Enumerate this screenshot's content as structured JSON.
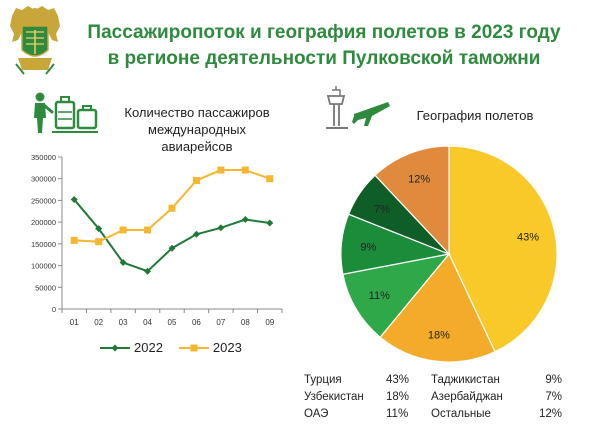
{
  "header": {
    "title_line1": "Пассажиропоток и география полетов в 2023 году",
    "title_line2": "в регионе деятельности Пулковской таможни",
    "emblem_icon": "customs-emblem-icon"
  },
  "passengers_section": {
    "title_line1": "Количество пассажиров",
    "title_line2": "международных авиарейсов",
    "icon": "passenger-luggage-icon"
  },
  "geo_section": {
    "title": "География полетов",
    "icon": "airport-tower-airplane-icon"
  },
  "colors": {
    "title": "#2e8b3e",
    "series_2022": "#1e7a36",
    "series_2023": "#f5b730"
  },
  "chart_data": [
    {
      "type": "line",
      "x": [
        "01",
        "02",
        "03",
        "04",
        "05",
        "06",
        "07",
        "08",
        "09"
      ],
      "ylim": [
        0,
        350000
      ],
      "yticks": [
        0,
        50000,
        100000,
        150000,
        200000,
        250000,
        300000,
        350000
      ],
      "grid": false,
      "legend": "bottom",
      "series": [
        {
          "name": "2022",
          "values": [
            252000,
            185000,
            107000,
            87000,
            140000,
            172000,
            187000,
            206000,
            198000
          ]
        },
        {
          "name": "2023",
          "values": [
            158000,
            155000,
            182000,
            182000,
            232000,
            296000,
            320000,
            320000,
            300000
          ]
        }
      ]
    },
    {
      "type": "pie",
      "slices": [
        {
          "name": "Турция",
          "value": 43,
          "label": "43%",
          "color": "#f8c928"
        },
        {
          "name": "Узбекистан",
          "value": 18,
          "label": "18%",
          "color": "#f5ab2a"
        },
        {
          "name": "ОАЭ",
          "value": 11,
          "label": "11%",
          "color": "#2fa84a"
        },
        {
          "name": "Таджикистан",
          "value": 9,
          "label": "9%",
          "color": "#1a8c3a"
        },
        {
          "name": "Азербайджан",
          "value": 7,
          "label": "7%",
          "color": "#0f5e28"
        },
        {
          "name": "Остальные",
          "value": 12,
          "label": "12%",
          "color": "#e08a3e"
        }
      ]
    }
  ],
  "geo_legend": [
    {
      "country": "Турция",
      "pct": "43%",
      "country2": "Таджикистан",
      "pct2": "9%"
    },
    {
      "country": "Узбекистан",
      "pct": "18%",
      "country2": "Азербайджан",
      "pct2": "7%"
    },
    {
      "country": "ОАЭ",
      "pct": "11%",
      "country2": "Остальные",
      "pct2": "12%"
    }
  ]
}
